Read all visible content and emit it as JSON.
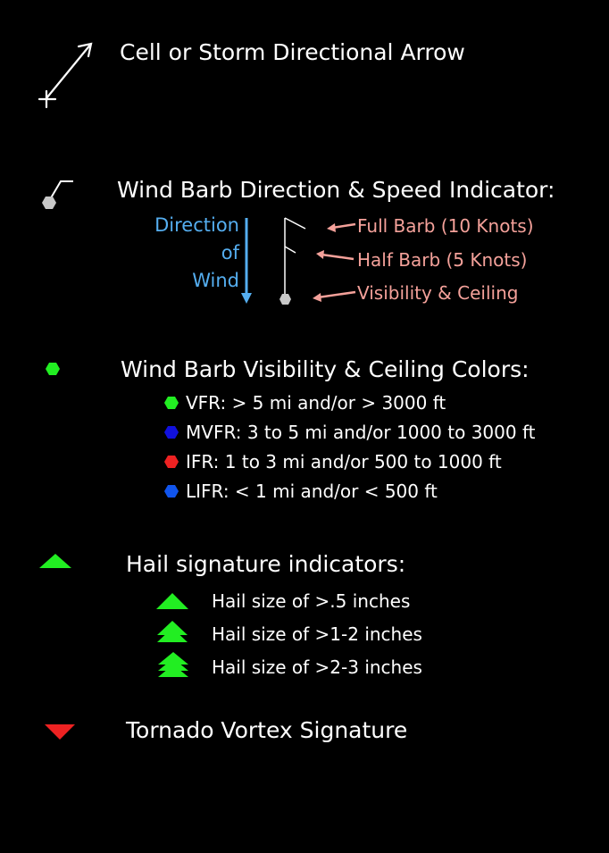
{
  "storm_arrow": {
    "label": "Cell or Storm Directional Arrow"
  },
  "wind_barb": {
    "label": "Wind Barb Direction & Speed Indicator:",
    "direction_lines": [
      "Direction",
      "of",
      "Wind"
    ],
    "full_barb": "Full Barb (10 Knots)",
    "half_barb": "Half Barb (5 Knots)",
    "visibility": "Visibility & Ceiling",
    "colors": {
      "direction": "#55aef0",
      "callout": "#f4a19a",
      "barb": "#ffffff",
      "station": "#c8c8c8"
    }
  },
  "visibility_colors": {
    "label": "Wind Barb Visibility & Ceiling Colors:",
    "items": [
      {
        "label": "VFR:  > 5 mi  and/or  > 3000 ft",
        "color": "#22ee22"
      },
      {
        "label": "MVFR:  3 to 5 mi  and/or  1000 to 3000 ft",
        "color": "#1111dd"
      },
      {
        "label": "IFR:  1 to 3 mi  and/or  500 to 1000 ft",
        "color": "#ee2222"
      },
      {
        "label": "LIFR:  < 1 mi  and/or  < 500 ft",
        "color": "#1155ee"
      }
    ]
  },
  "hail": {
    "label": "Hail signature indicators:",
    "color": "#22ee22",
    "items": [
      {
        "label": "Hail size of >.5 inches"
      },
      {
        "label": "Hail size of >1-2 inches"
      },
      {
        "label": "Hail size of >2-3 inches"
      }
    ]
  },
  "tornado": {
    "label": "Tornado Vortex Signature",
    "color": "#ee2222"
  }
}
